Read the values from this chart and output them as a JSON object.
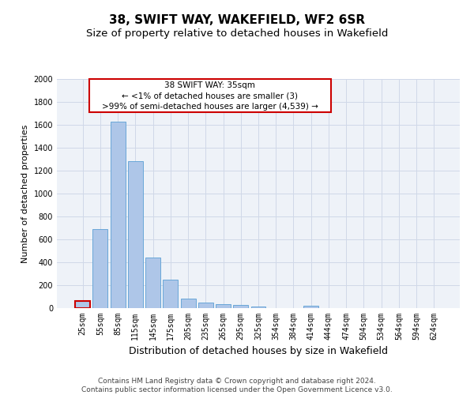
{
  "title": "38, SWIFT WAY, WAKEFIELD, WF2 6SR",
  "subtitle": "Size of property relative to detached houses in Wakefield",
  "xlabel": "Distribution of detached houses by size in Wakefield",
  "ylabel": "Number of detached properties",
  "footer_line1": "Contains HM Land Registry data © Crown copyright and database right 2024.",
  "footer_line2": "Contains public sector information licensed under the Open Government Licence v3.0.",
  "categories": [
    "25sqm",
    "55sqm",
    "85sqm",
    "115sqm",
    "145sqm",
    "175sqm",
    "205sqm",
    "235sqm",
    "265sqm",
    "295sqm",
    "325sqm",
    "354sqm",
    "384sqm",
    "414sqm",
    "444sqm",
    "474sqm",
    "504sqm",
    "534sqm",
    "564sqm",
    "594sqm",
    "624sqm"
  ],
  "values": [
    60,
    690,
    1630,
    1280,
    440,
    250,
    85,
    50,
    35,
    28,
    15,
    0,
    0,
    18,
    0,
    0,
    0,
    0,
    0,
    0,
    0
  ],
  "bar_color": "#aec6e8",
  "bar_edge_color": "#5a9fd4",
  "highlight_bar_index": 0,
  "highlight_bar_color": "#cc0000",
  "ylim": [
    0,
    2000
  ],
  "yticks": [
    0,
    200,
    400,
    600,
    800,
    1000,
    1200,
    1400,
    1600,
    1800,
    2000
  ],
  "annotation_text_line1": "38 SWIFT WAY: 35sqm",
  "annotation_text_line2": "← <1% of detached houses are smaller (3)",
  "annotation_text_line3": ">99% of semi-detached houses are larger (4,539) →",
  "annotation_box_color": "#ffffff",
  "annotation_box_edge_color": "#cc0000",
  "grid_color": "#d0d8e8",
  "background_color": "#ffffff",
  "axes_facecolor": "#eef2f8",
  "title_fontsize": 11,
  "subtitle_fontsize": 9.5,
  "xlabel_fontsize": 9,
  "ylabel_fontsize": 8,
  "tick_fontsize": 7,
  "annotation_fontsize": 7.5,
  "footer_fontsize": 6.5
}
